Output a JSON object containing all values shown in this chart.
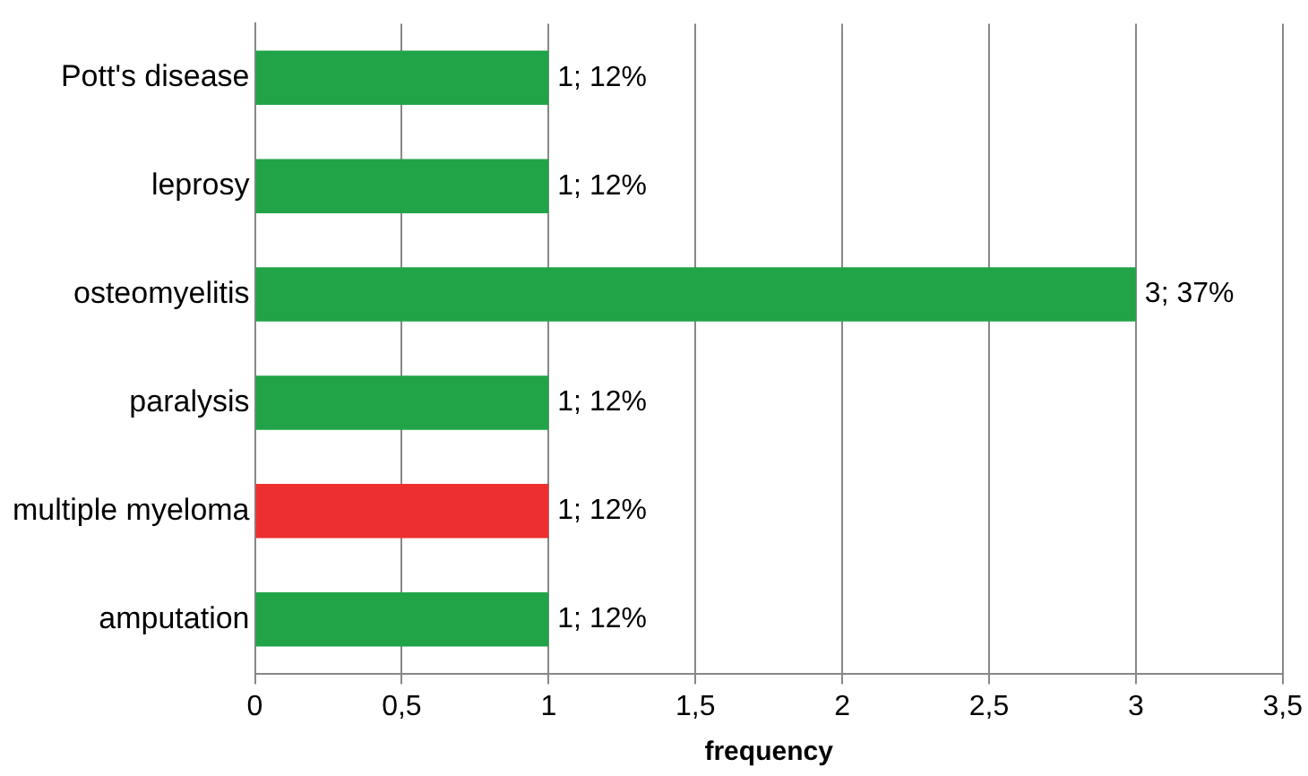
{
  "chart_data": {
    "type": "bar",
    "orientation": "horizontal",
    "xlabel": "frequency",
    "categories": [
      "Pott's disease",
      "leprosy",
      "osteomyelitis",
      "paralysis",
      "multiple myeloma",
      "amputation"
    ],
    "values": [
      1,
      1,
      3,
      1,
      1,
      1
    ],
    "colors": [
      "#21a448",
      "#21a448",
      "#21a448",
      "#21a448",
      "#ee2f2f",
      "#21a448"
    ],
    "value_labels": [
      "1; 12%",
      "1; 12%",
      "3; 37%",
      "1; 12%",
      "1; 12%",
      "1; 12%"
    ],
    "xlim": [
      0,
      3.5
    ],
    "xticks": [
      0,
      {
        "value": 0.5,
        "label": "0,5"
      },
      1,
      {
        "value": 1.5,
        "label": "1,5"
      },
      2,
      {
        "value": 2.5,
        "label": "2,5"
      },
      3,
      {
        "value": 3.5,
        "label": "3,5"
      }
    ],
    "grid": "x",
    "legend": false
  }
}
